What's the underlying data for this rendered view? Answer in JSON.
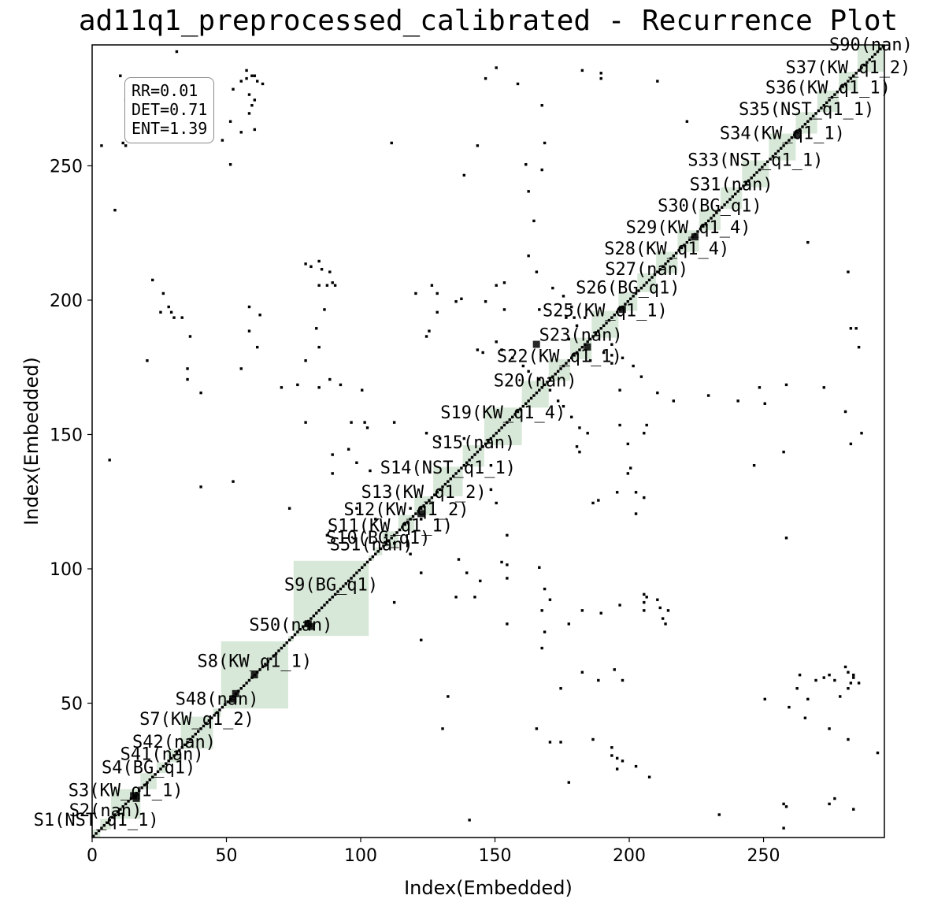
{
  "chart_data": {
    "type": "heatmap",
    "title": "ad11q1_preprocessed_calibrated - Recurrence Plot",
    "xlabel": "Index(Embedded)",
    "ylabel": "Index(Embedded)",
    "xlim": [
      0,
      295
    ],
    "ylim": [
      0,
      295
    ],
    "xticks": [
      "0",
      "50",
      "100",
      "150",
      "200",
      "250"
    ],
    "yticks": [
      "50",
      "100",
      "150",
      "200",
      "250"
    ],
    "stats": [
      "RR=0.01",
      "DET=0.71",
      "ENT=1.39"
    ],
    "colors": {
      "recurrence": "#000000",
      "segment_fill": "#8fbc8f",
      "background": "#ffffff"
    },
    "segments": [
      {
        "label": "S1(NST_q1_1)",
        "start": 0,
        "end": 3
      },
      {
        "label": "S2(nan)",
        "start": 3,
        "end": 7
      },
      {
        "label": "S3(KW_q1_1)",
        "start": 7,
        "end": 18
      },
      {
        "label": "S4(BG_q1)",
        "start": 18,
        "end": 24
      },
      {
        "label": "S41(nan)",
        "start": 24,
        "end": 28
      },
      {
        "label": "S42(nan)",
        "start": 28,
        "end": 33
      },
      {
        "label": "S7(KW_q1_2)",
        "start": 33,
        "end": 45
      },
      {
        "label": "S48(nan)",
        "start": 45,
        "end": 48
      },
      {
        "label": "S8(KW_q1_1)",
        "start": 48,
        "end": 73
      },
      {
        "label": "S50(nan)",
        "start": 73,
        "end": 75
      },
      {
        "label": "S9(BG_q1)",
        "start": 75,
        "end": 103
      },
      {
        "label": "S51(nan)",
        "start": 103,
        "end": 105
      },
      {
        "label": "S10(BG_q1)",
        "start": 105,
        "end": 108
      },
      {
        "label": "S11(KW_q1_1)",
        "start": 108,
        "end": 114
      },
      {
        "label": "S12(KW_q1_2)",
        "start": 114,
        "end": 120
      },
      {
        "label": "S13(KW_q1_2)",
        "start": 120,
        "end": 127
      },
      {
        "label": "S14(NST_q1_1)",
        "start": 127,
        "end": 138
      },
      {
        "label": "S15(nan)",
        "start": 138,
        "end": 146
      },
      {
        "label": "S19(KW_q1_4)",
        "start": 146,
        "end": 160
      },
      {
        "label": "S20(nan)",
        "start": 160,
        "end": 170
      },
      {
        "label": "S22(KW_q1_1)",
        "start": 170,
        "end": 178
      },
      {
        "label": "S23(nan)",
        "start": 178,
        "end": 186
      },
      {
        "label": "S25(KW_q1_1)",
        "start": 186,
        "end": 196
      },
      {
        "label": "S26(BG_q1)",
        "start": 196,
        "end": 203
      },
      {
        "label": "S27(nan)",
        "start": 203,
        "end": 210
      },
      {
        "label": "S28(KW_q1_4)",
        "start": 210,
        "end": 218
      },
      {
        "label": "S29(KW_q1_4)",
        "start": 218,
        "end": 226
      },
      {
        "label": "S30(BG_q1)",
        "start": 226,
        "end": 234
      },
      {
        "label": "S31(nan)",
        "start": 234,
        "end": 242
      },
      {
        "label": "S33(NST_q1_1)",
        "start": 242,
        "end": 252
      },
      {
        "label": "S34(KW_q1_1)",
        "start": 252,
        "end": 262
      },
      {
        "label": "S35(NST_q1_1)",
        "start": 262,
        "end": 270
      },
      {
        "label": "S36(KW_q1_1)",
        "start": 270,
        "end": 278
      },
      {
        "label": "S37(KW_q1_2)",
        "start": 278,
        "end": 285
      },
      {
        "label": "S90(nan)",
        "start": 285,
        "end": 295
      }
    ],
    "recurrence_points": [
      [
        14,
        276
      ],
      [
        55,
        281
      ],
      [
        57,
        282
      ],
      [
        59,
        283
      ],
      [
        61,
        281
      ],
      [
        63,
        280
      ],
      [
        51,
        266
      ],
      [
        55,
        262
      ],
      [
        60,
        263
      ],
      [
        11,
        258
      ],
      [
        12,
        257
      ],
      [
        146,
        282
      ],
      [
        189,
        284
      ],
      [
        189,
        282
      ],
      [
        182,
        285
      ],
      [
        210,
        281
      ],
      [
        111,
        258
      ],
      [
        167,
        272
      ],
      [
        221,
        266
      ],
      [
        168,
        258
      ],
      [
        30,
        193
      ],
      [
        33,
        193
      ],
      [
        25,
        195
      ],
      [
        29,
        195
      ],
      [
        58,
        197
      ],
      [
        84,
        205
      ],
      [
        87,
        205
      ],
      [
        90,
        205
      ],
      [
        89,
        206
      ],
      [
        125,
        188
      ],
      [
        137,
        200
      ],
      [
        150,
        205
      ],
      [
        120,
        202
      ],
      [
        128,
        202
      ],
      [
        135,
        199
      ],
      [
        146,
        199
      ],
      [
        153,
        196
      ],
      [
        166,
        196
      ],
      [
        176,
        193
      ],
      [
        179,
        193
      ],
      [
        183,
        193
      ],
      [
        20,
        177
      ],
      [
        35,
        170
      ],
      [
        70,
        167
      ],
      [
        76,
        168
      ],
      [
        84,
        167
      ],
      [
        100,
        166
      ],
      [
        143,
        181
      ],
      [
        145,
        180
      ],
      [
        150,
        184
      ],
      [
        152,
        181
      ],
      [
        156,
        178
      ],
      [
        160,
        175
      ],
      [
        162,
        173
      ],
      [
        166,
        170
      ],
      [
        96,
        154
      ],
      [
        79,
        154
      ],
      [
        103,
        136
      ],
      [
        112,
        154
      ],
      [
        124,
        150
      ],
      [
        129,
        148
      ],
      [
        138,
        148
      ],
      [
        210,
        165
      ],
      [
        216,
        162
      ],
      [
        206,
        153
      ],
      [
        185,
        177
      ],
      [
        190,
        180
      ],
      [
        197,
        178
      ],
      [
        201,
        175
      ],
      [
        204,
        171
      ],
      [
        248,
        167
      ],
      [
        250,
        161
      ],
      [
        240,
        162
      ],
      [
        229,
        164
      ],
      [
        6,
        140
      ],
      [
        40,
        130
      ],
      [
        52,
        132
      ],
      [
        73,
        122
      ],
      [
        87,
        112
      ],
      [
        109,
        112
      ],
      [
        98,
        122
      ],
      [
        105,
        118
      ],
      [
        122,
        118
      ],
      [
        152,
        102
      ],
      [
        154,
        101
      ],
      [
        139,
        98
      ],
      [
        144,
        95
      ],
      [
        135,
        89
      ],
      [
        142,
        89
      ],
      [
        168,
        92
      ],
      [
        170,
        88
      ],
      [
        177,
        79
      ],
      [
        182,
        84
      ],
      [
        189,
        83
      ],
      [
        196,
        86
      ],
      [
        214,
        84
      ],
      [
        210,
        88
      ],
      [
        211,
        85
      ],
      [
        212,
        81
      ],
      [
        213,
        79
      ],
      [
        186,
        124
      ],
      [
        195,
        128
      ],
      [
        205,
        126
      ],
      [
        246,
        138
      ],
      [
        257,
        143
      ],
      [
        286,
        150
      ],
      [
        280,
        158
      ],
      [
        182,
        61
      ],
      [
        188,
        58
      ],
      [
        194,
        62
      ],
      [
        197,
        28
      ],
      [
        202,
        26
      ],
      [
        207,
        22
      ],
      [
        186,
        36
      ],
      [
        174,
        35
      ],
      [
        165,
        40
      ],
      [
        269,
        58
      ],
      [
        272,
        59
      ],
      [
        274,
        60
      ],
      [
        283,
        60
      ],
      [
        285,
        57
      ],
      [
        278,
        52
      ],
      [
        276,
        58
      ],
      [
        174,
        55
      ],
      [
        250,
        51
      ],
      [
        259,
        48
      ],
      [
        265,
        44
      ],
      [
        274,
        40
      ],
      [
        281,
        36
      ],
      [
        292,
        31
      ],
      [
        233,
        8
      ],
      [
        274,
        12
      ],
      [
        283,
        10
      ],
      [
        257,
        3
      ]
    ]
  }
}
